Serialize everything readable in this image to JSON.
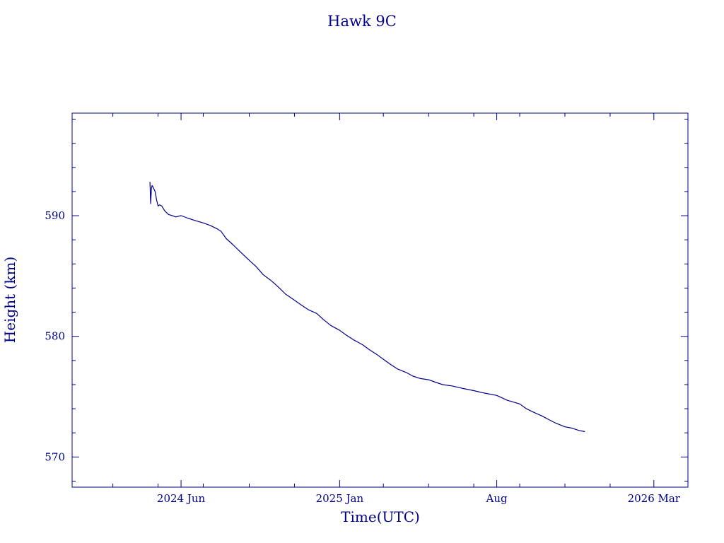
{
  "colors": {
    "foreground": "#00008b",
    "background": "#ffffff"
  },
  "chart_data": {
    "type": "line",
    "title": "Hawk 9C",
    "xlabel": "Time(UTC)",
    "ylabel": "Height (km)",
    "xlim": [
      "2024-01-06",
      "2026-04-16"
    ],
    "ylim": [
      567.5,
      598.5
    ],
    "grid": false,
    "x_ticks": [
      {
        "date": "2024-06-01",
        "label": "2024 Jun"
      },
      {
        "date": "2025-01-01",
        "label": "2025 Jan"
      },
      {
        "date": "2025-08-01",
        "label": "Aug"
      },
      {
        "date": "2026-03-01",
        "label": "2026 Mar"
      }
    ],
    "y_ticks": [
      {
        "value": 570,
        "label": "570"
      },
      {
        "value": 580,
        "label": "580"
      },
      {
        "value": 590,
        "label": "590"
      }
    ],
    "series": [
      {
        "x": [
          "2024-04-20",
          "2024-04-21",
          "2024-04-22",
          "2024-04-23",
          "2024-04-24",
          "2024-04-27",
          "2024-04-29",
          "2024-05-01",
          "2024-05-03",
          "2024-05-06",
          "2024-05-10",
          "2024-05-15",
          "2024-05-20",
          "2024-05-25",
          "2024-06-01",
          "2024-06-10",
          "2024-06-20",
          "2024-07-01",
          "2024-07-10",
          "2024-07-20",
          "2024-07-25",
          "2024-08-01",
          "2024-08-10",
          "2024-08-20",
          "2024-09-01",
          "2024-09-10",
          "2024-09-20",
          "2024-10-01",
          "2024-10-10",
          "2024-10-20",
          "2024-11-01",
          "2024-11-10",
          "2024-11-20",
          "2024-12-01",
          "2024-12-10",
          "2024-12-20",
          "2025-01-01",
          "2025-01-10",
          "2025-01-20",
          "2025-02-01",
          "2025-02-10",
          "2025-02-20",
          "2025-03-01",
          "2025-03-10",
          "2025-03-20",
          "2025-04-01",
          "2025-04-10",
          "2025-04-20",
          "2025-05-01",
          "2025-05-10",
          "2025-05-20",
          "2025-06-01",
          "2025-06-15",
          "2025-07-01",
          "2025-07-15",
          "2025-08-01",
          "2025-08-15",
          "2025-09-01",
          "2025-09-10",
          "2025-09-20",
          "2025-10-01",
          "2025-10-10",
          "2025-10-20",
          "2025-11-01",
          "2025-11-10",
          "2025-11-20",
          "2025-11-28"
        ],
        "y": [
          592.8,
          591.0,
          592.3,
          592.5,
          592.4,
          592.0,
          591.3,
          590.8,
          590.9,
          590.8,
          590.4,
          590.1,
          590.0,
          589.9,
          590.0,
          589.8,
          589.6,
          589.4,
          589.2,
          588.9,
          588.7,
          588.1,
          587.6,
          587.0,
          586.3,
          585.8,
          585.1,
          584.6,
          584.1,
          583.5,
          583.0,
          582.6,
          582.2,
          581.9,
          581.4,
          580.9,
          580.5,
          580.1,
          579.7,
          579.3,
          578.9,
          578.5,
          578.1,
          577.7,
          577.3,
          577.0,
          576.7,
          576.5,
          576.4,
          576.2,
          576.0,
          575.9,
          575.7,
          575.5,
          575.3,
          575.1,
          574.7,
          574.4,
          574.0,
          573.7,
          573.4,
          573.1,
          572.8,
          572.5,
          572.4,
          572.2,
          572.1
        ]
      }
    ]
  }
}
